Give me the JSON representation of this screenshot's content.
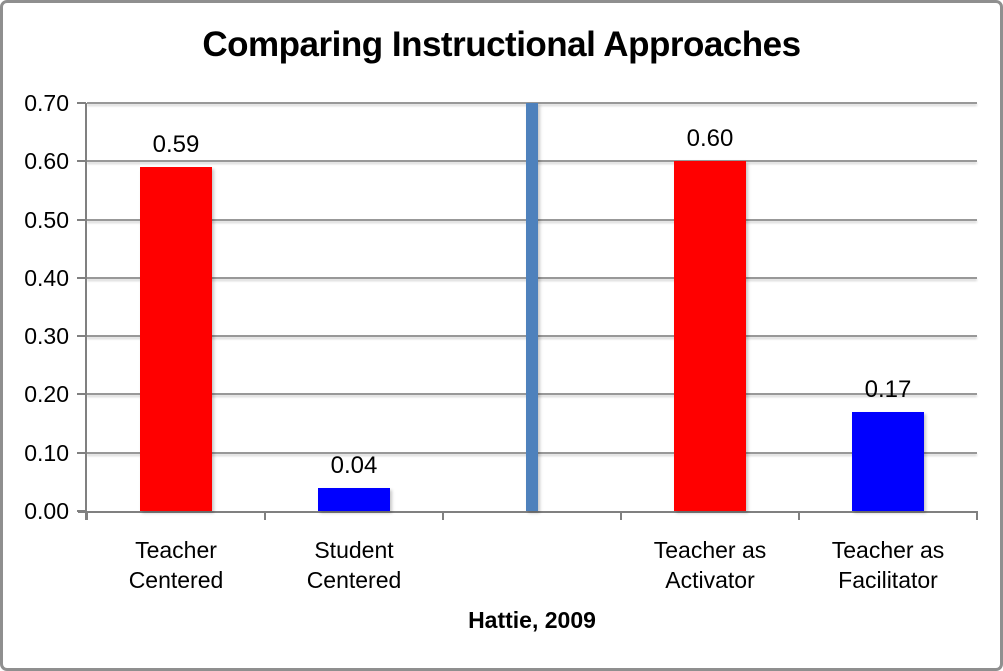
{
  "frame": {
    "background_color": "#FFFFFF",
    "border_color": "#8F8F8F"
  },
  "chart_data": {
    "type": "bar",
    "title": "Comparing Instructional Approaches",
    "xlabel": "Hattie, 2009",
    "ylabel": "",
    "ylim": [
      0,
      0.7
    ],
    "ytick_step": 0.1,
    "yticks": [
      "0.00",
      "0.10",
      "0.20",
      "0.30",
      "0.40",
      "0.50",
      "0.60",
      "0.70"
    ],
    "grid": true,
    "legend": false,
    "categories": [
      "Teacher Centered",
      "Student Centered",
      "",
      "Teacher as Activator",
      "Teacher as Facilitator"
    ],
    "values": [
      0.59,
      0.04,
      0.7,
      0.6,
      0.17
    ],
    "bars": [
      {
        "name": "teacher-centered",
        "category": "Teacher Centered",
        "label_lines": [
          "Teacher",
          "Centered"
        ],
        "value": 0.59,
        "data_label": "0.59",
        "color": "#FF0000",
        "role": "data"
      },
      {
        "name": "student-centered",
        "category": "Student Centered",
        "label_lines": [
          "Student",
          "Centered"
        ],
        "value": 0.04,
        "data_label": "0.04",
        "color": "#0000FF",
        "role": "data"
      },
      {
        "name": "center-divider",
        "category": "",
        "label_lines": [],
        "value": 0.7,
        "data_label": "",
        "color": "#4E81BC",
        "role": "divider"
      },
      {
        "name": "teacher-as-activator",
        "category": "Teacher as Activator",
        "label_lines": [
          "Teacher as",
          "Activator"
        ],
        "value": 0.6,
        "data_label": "0.60",
        "color": "#FF0000",
        "role": "data"
      },
      {
        "name": "teacher-as-facilitator",
        "category": "Teacher as Facilitator",
        "label_lines": [
          "Teacher as",
          "Facilitator"
        ],
        "value": 0.17,
        "data_label": "0.17",
        "color": "#0000FF",
        "role": "data"
      }
    ],
    "colors": {
      "red_series": "#FF0000",
      "blue_series": "#0000FF",
      "divider": "#4E81BC",
      "gridline": "#989898",
      "axis": "#808080",
      "text": "#000000"
    }
  }
}
